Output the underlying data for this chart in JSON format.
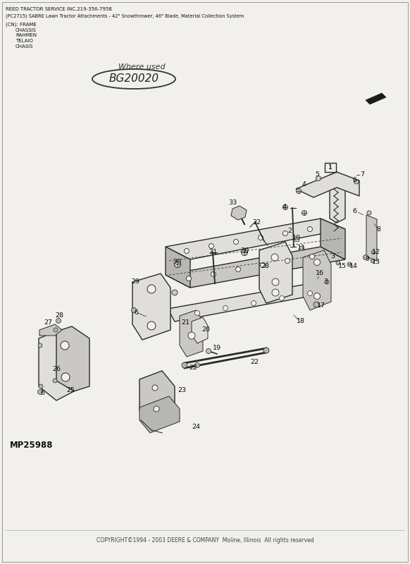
{
  "bg_color": "#f2f0ec",
  "page_bg": "#f2f0ec",
  "title_line1": "REED TRACTOR SERVICE INC.219-356-7958",
  "title_line2": "(PC2715) SABRE Lawn Tractor Attachments - 42\" Snowthrower, 46\" Blade, Material Collection System",
  "label_cn": "(CN): FRAME",
  "label_translations": [
    "CHASSIS",
    "RAHMEN",
    "TELAIO",
    "CHASIS"
  ],
  "handwritten_where": "Where used",
  "handwritten_bg": "BG20020",
  "part_number": "MP25988",
  "copyright": "COPYRIGHT©1994 - 2003 DEERE & COMPANY  Moline, Illinois  All rights reserved",
  "col": "#2a2a2a",
  "arrow_fill": "#1a1a1a"
}
